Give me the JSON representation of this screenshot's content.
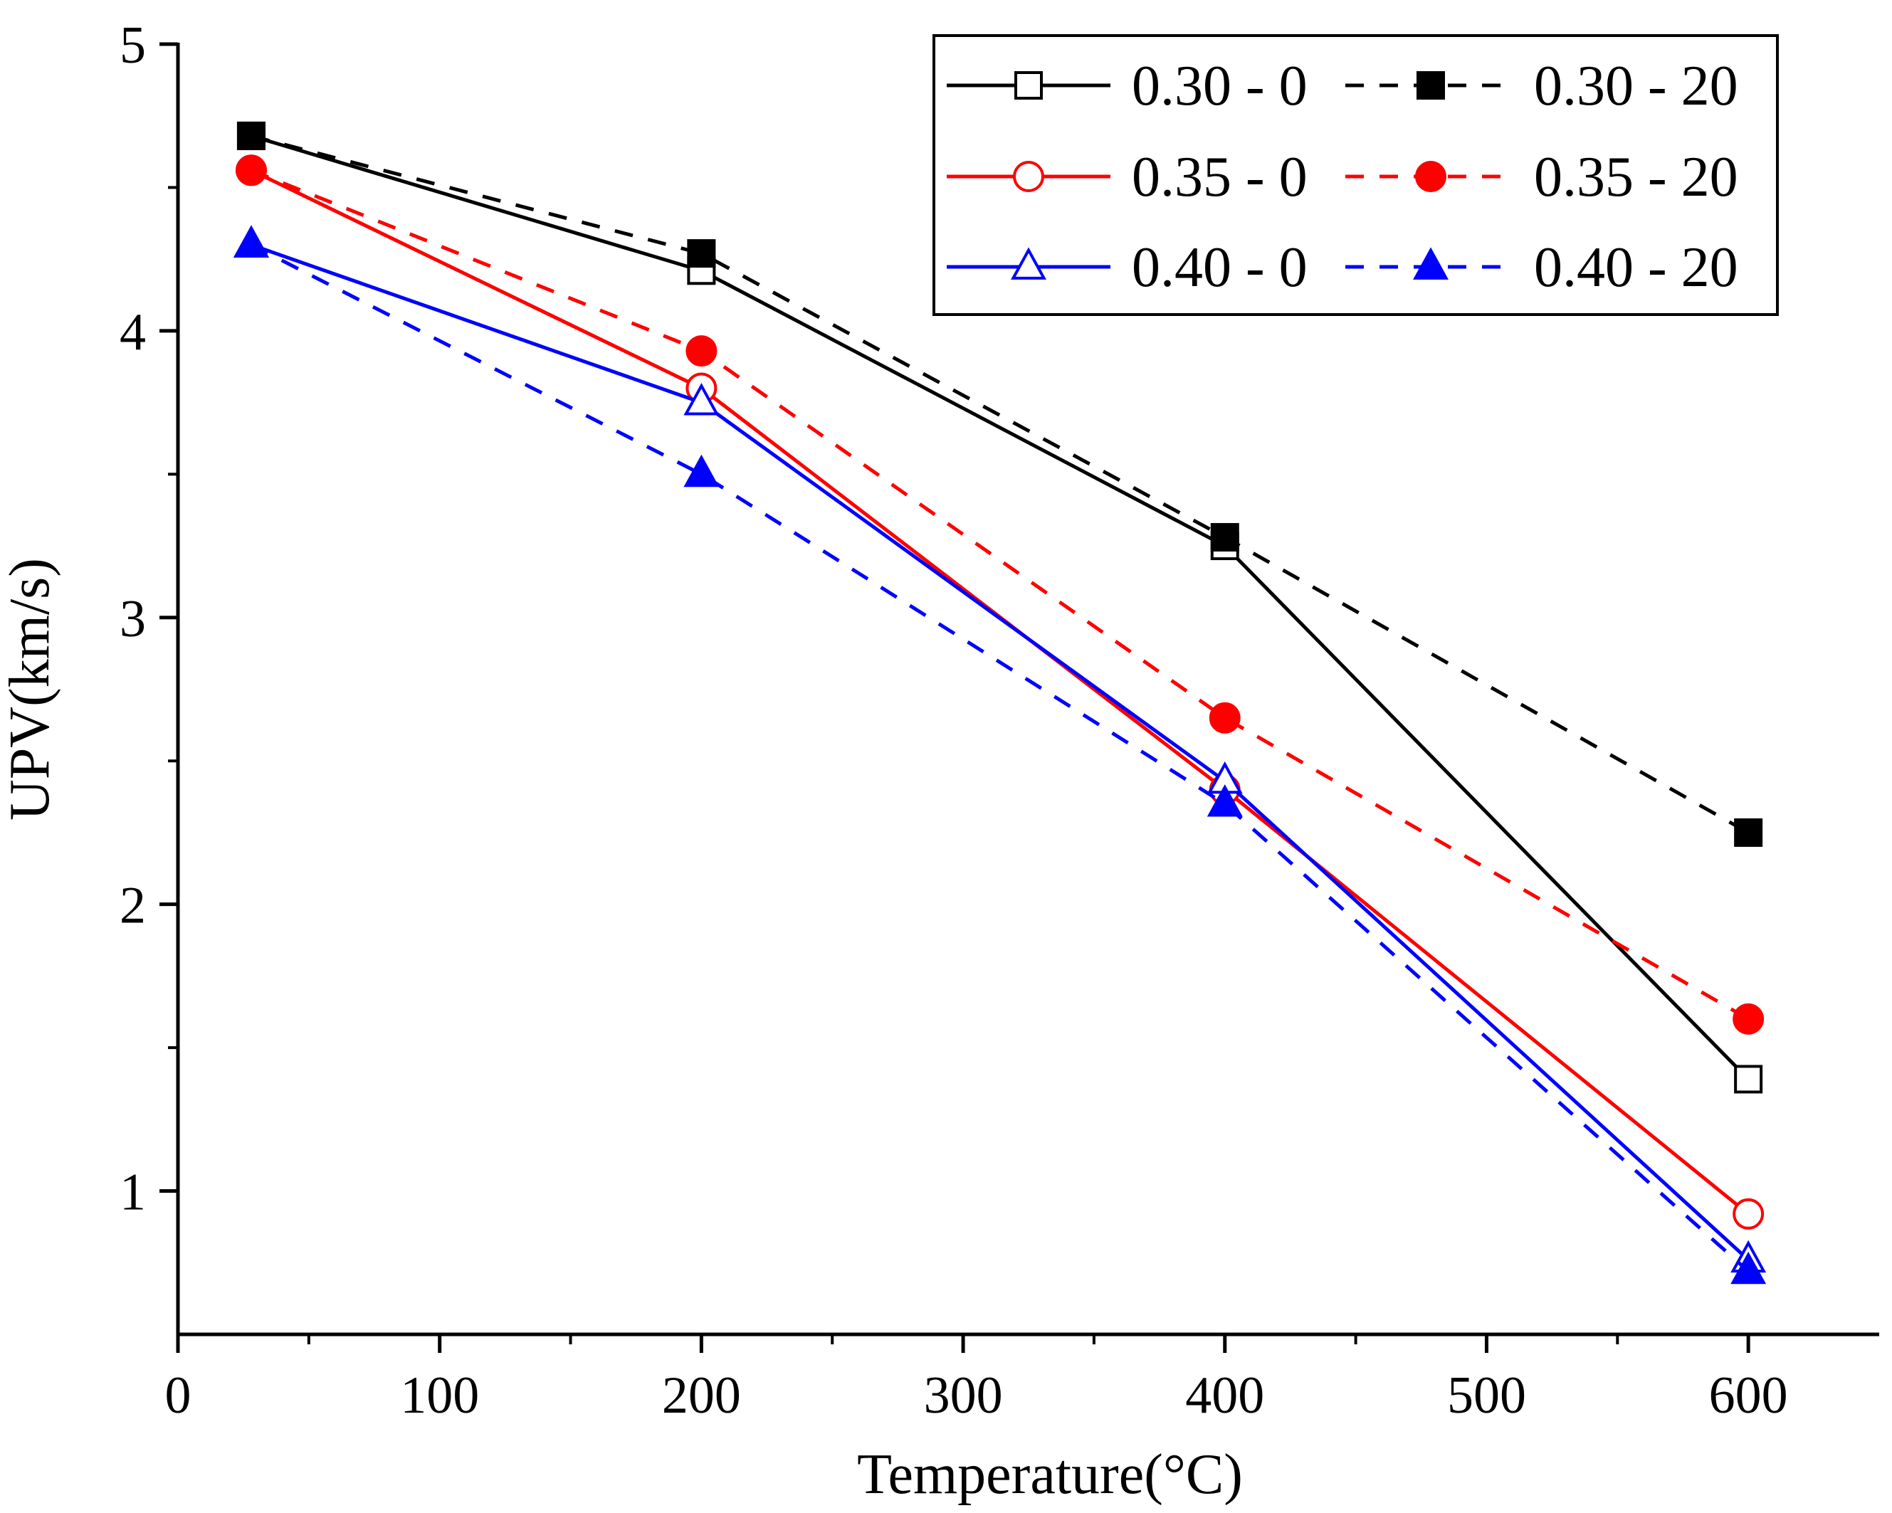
{
  "chart_data": {
    "type": "line",
    "title": "",
    "xlabel": "Temperature(°C)",
    "ylabel": "UPV(km/s)",
    "xlim": [
      0,
      650
    ],
    "ylim": [
      0.5,
      5
    ],
    "x_ticks": [
      0,
      100,
      200,
      300,
      400,
      500,
      600
    ],
    "x_tick_labels": [
      "0",
      "100",
      "200",
      "300",
      "400",
      "500",
      "600"
    ],
    "y_ticks": [
      1,
      2,
      3,
      4,
      5
    ],
    "y_tick_labels": [
      "1",
      "2",
      "3",
      "4",
      "5"
    ],
    "grid": false,
    "legend_position": "top-right",
    "series": [
      {
        "name": "0.30 - 0",
        "x": [
          28,
          200,
          400,
          600
        ],
        "y": [
          4.68,
          4.21,
          3.25,
          1.39
        ],
        "color": "#000000",
        "dash": false,
        "marker": "square",
        "filled": false
      },
      {
        "name": "0.30 - 20",
        "x": [
          28,
          200,
          400,
          600
        ],
        "y": [
          4.68,
          4.27,
          3.28,
          2.25
        ],
        "color": "#000000",
        "dash": true,
        "marker": "square",
        "filled": true
      },
      {
        "name": "0.35 - 0",
        "x": [
          28,
          200,
          400,
          600
        ],
        "y": [
          4.56,
          3.8,
          2.4,
          0.92
        ],
        "color": "#ff0000",
        "dash": false,
        "marker": "circle",
        "filled": false
      },
      {
        "name": "0.35 - 20",
        "x": [
          28,
          200,
          400,
          600
        ],
        "y": [
          4.56,
          3.93,
          2.65,
          1.6
        ],
        "color": "#ff0000",
        "dash": true,
        "marker": "circle",
        "filled": true
      },
      {
        "name": "0.40 - 0",
        "x": [
          28,
          200,
          400,
          600
        ],
        "y": [
          4.3,
          3.75,
          2.43,
          0.76
        ],
        "color": "#0000ff",
        "dash": false,
        "marker": "triangle",
        "filled": false
      },
      {
        "name": "0.40 - 20",
        "x": [
          28,
          200,
          400,
          600
        ],
        "y": [
          4.3,
          3.5,
          2.35,
          0.72
        ],
        "color": "#0000ff",
        "dash": true,
        "marker": "triangle",
        "filled": true
      }
    ]
  }
}
